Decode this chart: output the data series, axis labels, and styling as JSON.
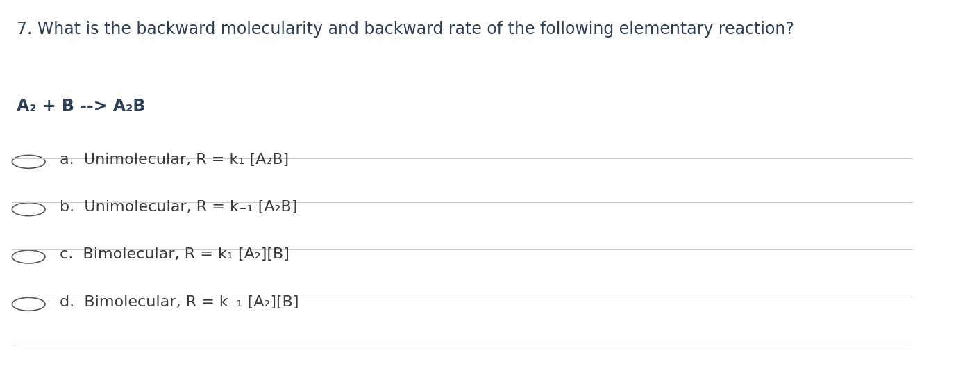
{
  "background_color": "#ffffff",
  "title": "7. What is the backward molecularity and backward rate of the following elementary reaction?",
  "reaction": "A₂ + B --> A₂B",
  "options": [
    "a.  Unimolecular, R = k₁ [A₂B]",
    "b.  Unimolecular, R = k₋₁ [A₂B]",
    "c.  Bimolecular, R = k₁ [A₂][B]",
    "d.  Bimolecular, R = k₋₁ [A₂][B]"
  ],
  "title_color": "#2e4057",
  "reaction_color": "#2e4057",
  "option_color": "#3a3a3a",
  "line_color": "#cccccc",
  "title_fontsize": 17,
  "reaction_fontsize": 17,
  "option_fontsize": 16,
  "circle_color": "#555555",
  "fig_width": 13.9,
  "fig_height": 5.34
}
